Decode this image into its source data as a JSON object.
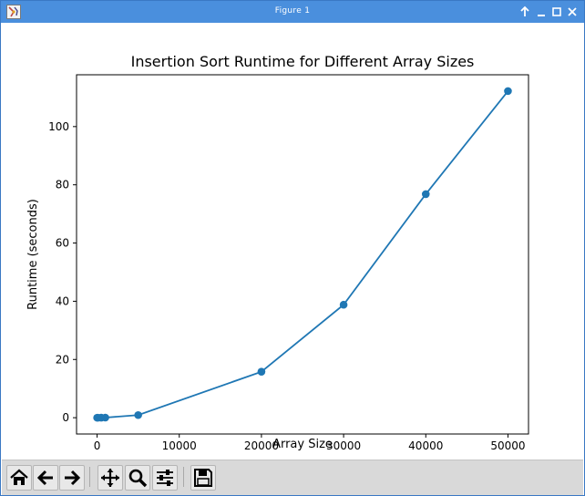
{
  "window": {
    "title": "Figure 1"
  },
  "toolbar": {
    "buttons": [
      {
        "name": "home-button",
        "icon": "home-icon"
      },
      {
        "name": "back-button",
        "icon": "arrow-left-icon"
      },
      {
        "name": "forward-button",
        "icon": "arrow-right-icon"
      },
      {
        "name": "pan-button",
        "icon": "move-icon"
      },
      {
        "name": "zoom-button",
        "icon": "magnifier-icon"
      },
      {
        "name": "configure-subplots-button",
        "icon": "sliders-icon"
      },
      {
        "name": "save-button",
        "icon": "floppy-disk-icon"
      }
    ]
  },
  "chart_data": {
    "type": "line",
    "title": "Insertion Sort Runtime for Different Array Sizes",
    "xlabel": "Array Size",
    "ylabel": "Runtime (seconds)",
    "x": [
      10,
      100,
      500,
      1000,
      5000,
      20000,
      30000,
      40000,
      50000
    ],
    "series": [
      {
        "values": [
          0.0,
          0.0,
          0.01,
          0.04,
          0.9,
          15.8,
          38.8,
          76.8,
          112.2
        ]
      }
    ],
    "xticks": [
      "0",
      "10000",
      "20000",
      "30000",
      "40000",
      "50000"
    ],
    "yticks": [
      "0",
      "20",
      "40",
      "60",
      "80",
      "100"
    ],
    "xlim": [
      -2500,
      52500
    ],
    "ylim": [
      -5.6,
      117.8
    ],
    "color": "#1f77b4",
    "marker": "circle",
    "grid": false
  }
}
